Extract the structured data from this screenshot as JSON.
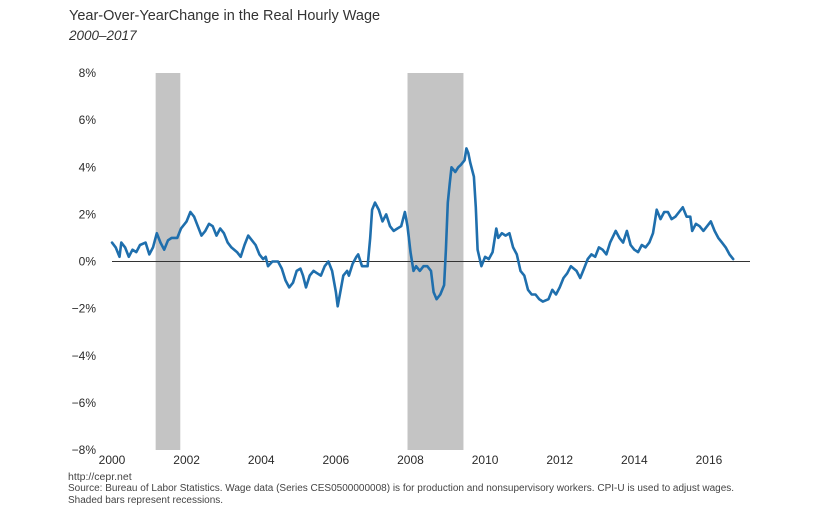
{
  "title": "Year-Over-YearChange in the Real Hourly Wage",
  "subtitle": "2000–2017",
  "footer": {
    "url": "http://cepr.net",
    "source": "Source: Bureau of Labor Statistics. Wage data (Series CES0500000008) is for production and nonsupervisory workers. CPI-U is used to adjust wages.",
    "note": "Shaded bars represent recessions."
  },
  "colors": {
    "line": "#1f6fad",
    "recession": "#c4c4c4",
    "zero_line": "#333333"
  },
  "chart_data": {
    "type": "line",
    "title": "Year-Over-YearChange in the Real Hourly Wage",
    "subtitle": "2000–2017",
    "xlim": [
      2000,
      2017.1
    ],
    "ylim": [
      -8,
      8
    ],
    "x_ticks": [
      2000,
      2002,
      2004,
      2006,
      2008,
      2010,
      2012,
      2014,
      2016
    ],
    "x_tick_labels": [
      "2000",
      "2002",
      "2004",
      "2006",
      "2008",
      "2010",
      "2012",
      "2014",
      "2016"
    ],
    "y_ticks": [
      8,
      6,
      4,
      2,
      0,
      -2,
      -4,
      -6,
      -8
    ],
    "y_tick_labels": [
      "8%",
      "6%",
      "4%",
      "2%",
      "0%",
      "−2%",
      "−4%",
      "−6%",
      "−8%"
    ],
    "grid": false,
    "recessions": [
      [
        2001.17,
        2001.83
      ],
      [
        2007.92,
        2009.42
      ]
    ],
    "series": [
      {
        "values": [
          [
            2000.0,
            0.8
          ],
          [
            2000.1,
            0.6
          ],
          [
            2000.2,
            0.2
          ],
          [
            2000.25,
            0.8
          ],
          [
            2000.35,
            0.6
          ],
          [
            2000.45,
            0.2
          ],
          [
            2000.55,
            0.5
          ],
          [
            2000.65,
            0.4
          ],
          [
            2000.75,
            0.7
          ],
          [
            2000.9,
            0.8
          ],
          [
            2001.0,
            0.3
          ],
          [
            2001.1,
            0.6
          ],
          [
            2001.2,
            1.2
          ],
          [
            2001.3,
            0.8
          ],
          [
            2001.4,
            0.5
          ],
          [
            2001.5,
            0.9
          ],
          [
            2001.6,
            1.0
          ],
          [
            2001.75,
            1.0
          ],
          [
            2001.85,
            1.4
          ],
          [
            2002.0,
            1.7
          ],
          [
            2002.1,
            2.1
          ],
          [
            2002.2,
            1.9
          ],
          [
            2002.3,
            1.5
          ],
          [
            2002.4,
            1.1
          ],
          [
            2002.5,
            1.3
          ],
          [
            2002.6,
            1.6
          ],
          [
            2002.7,
            1.5
          ],
          [
            2002.8,
            1.1
          ],
          [
            2002.9,
            1.4
          ],
          [
            2003.0,
            1.2
          ],
          [
            2003.1,
            0.8
          ],
          [
            2003.2,
            0.6
          ],
          [
            2003.35,
            0.4
          ],
          [
            2003.45,
            0.2
          ],
          [
            2003.55,
            0.7
          ],
          [
            2003.65,
            1.1
          ],
          [
            2003.75,
            0.9
          ],
          [
            2003.85,
            0.7
          ],
          [
            2003.95,
            0.3
          ],
          [
            2004.05,
            0.1
          ],
          [
            2004.12,
            0.2
          ],
          [
            2004.18,
            -0.2
          ],
          [
            2004.3,
            0.0
          ],
          [
            2004.45,
            0.0
          ],
          [
            2004.55,
            -0.3
          ],
          [
            2004.65,
            -0.8
          ],
          [
            2004.75,
            -1.1
          ],
          [
            2004.85,
            -0.9
          ],
          [
            2004.95,
            -0.4
          ],
          [
            2005.05,
            -0.3
          ],
          [
            2005.12,
            -0.6
          ],
          [
            2005.2,
            -1.1
          ],
          [
            2005.3,
            -0.6
          ],
          [
            2005.4,
            -0.4
          ],
          [
            2005.5,
            -0.5
          ],
          [
            2005.6,
            -0.6
          ],
          [
            2005.7,
            -0.2
          ],
          [
            2005.8,
            0.0
          ],
          [
            2005.9,
            -0.4
          ],
          [
            2006.0,
            -1.3
          ],
          [
            2006.05,
            -1.9
          ],
          [
            2006.12,
            -1.3
          ],
          [
            2006.2,
            -0.6
          ],
          [
            2006.3,
            -0.4
          ],
          [
            2006.35,
            -0.6
          ],
          [
            2006.45,
            -0.1
          ],
          [
            2006.55,
            0.2
          ],
          [
            2006.6,
            0.3
          ],
          [
            2006.7,
            -0.2
          ],
          [
            2006.85,
            -0.2
          ],
          [
            2006.92,
            1.0
          ],
          [
            2006.97,
            2.2
          ],
          [
            2007.05,
            2.5
          ],
          [
            2007.15,
            2.2
          ],
          [
            2007.25,
            1.7
          ],
          [
            2007.35,
            2.0
          ],
          [
            2007.45,
            1.5
          ],
          [
            2007.55,
            1.3
          ],
          [
            2007.65,
            1.4
          ],
          [
            2007.75,
            1.5
          ],
          [
            2007.85,
            2.1
          ],
          [
            2007.92,
            1.5
          ],
          [
            2008.0,
            0.4
          ],
          [
            2008.08,
            -0.4
          ],
          [
            2008.15,
            -0.2
          ],
          [
            2008.25,
            -0.4
          ],
          [
            2008.35,
            -0.2
          ],
          [
            2008.45,
            -0.2
          ],
          [
            2008.55,
            -0.4
          ],
          [
            2008.62,
            -1.3
          ],
          [
            2008.7,
            -1.6
          ],
          [
            2008.8,
            -1.4
          ],
          [
            2008.9,
            -1.0
          ],
          [
            2008.95,
            0.5
          ],
          [
            2009.0,
            2.5
          ],
          [
            2009.05,
            3.3
          ],
          [
            2009.1,
            4.0
          ],
          [
            2009.2,
            3.8
          ],
          [
            2009.28,
            4.0
          ],
          [
            2009.35,
            4.1
          ],
          [
            2009.45,
            4.3
          ],
          [
            2009.5,
            4.8
          ],
          [
            2009.55,
            4.6
          ],
          [
            2009.6,
            4.2
          ],
          [
            2009.7,
            3.6
          ],
          [
            2009.75,
            2.3
          ],
          [
            2009.8,
            0.5
          ],
          [
            2009.9,
            -0.2
          ],
          [
            2010.0,
            0.2
          ],
          [
            2010.1,
            0.1
          ],
          [
            2010.2,
            0.4
          ],
          [
            2010.3,
            1.4
          ],
          [
            2010.35,
            1.0
          ],
          [
            2010.45,
            1.2
          ],
          [
            2010.55,
            1.1
          ],
          [
            2010.65,
            1.2
          ],
          [
            2010.75,
            0.6
          ],
          [
            2010.85,
            0.3
          ],
          [
            2010.95,
            -0.4
          ],
          [
            2011.05,
            -0.6
          ],
          [
            2011.15,
            -1.2
          ],
          [
            2011.25,
            -1.4
          ],
          [
            2011.35,
            -1.4
          ],
          [
            2011.45,
            -1.6
          ],
          [
            2011.55,
            -1.7
          ],
          [
            2011.7,
            -1.6
          ],
          [
            2011.8,
            -1.2
          ],
          [
            2011.9,
            -1.4
          ],
          [
            2012.0,
            -1.1
          ],
          [
            2012.1,
            -0.7
          ],
          [
            2012.2,
            -0.5
          ],
          [
            2012.3,
            -0.2
          ],
          [
            2012.45,
            -0.4
          ],
          [
            2012.55,
            -0.7
          ],
          [
            2012.65,
            -0.3
          ],
          [
            2012.75,
            0.1
          ],
          [
            2012.85,
            0.3
          ],
          [
            2012.95,
            0.2
          ],
          [
            2013.05,
            0.6
          ],
          [
            2013.15,
            0.5
          ],
          [
            2013.25,
            0.3
          ],
          [
            2013.35,
            0.8
          ],
          [
            2013.5,
            1.3
          ],
          [
            2013.6,
            1.0
          ],
          [
            2013.7,
            0.8
          ],
          [
            2013.8,
            1.3
          ],
          [
            2013.9,
            0.7
          ],
          [
            2014.0,
            0.5
          ],
          [
            2014.1,
            0.4
          ],
          [
            2014.2,
            0.7
          ],
          [
            2014.3,
            0.6
          ],
          [
            2014.4,
            0.8
          ],
          [
            2014.5,
            1.2
          ],
          [
            2014.55,
            1.7
          ],
          [
            2014.6,
            2.2
          ],
          [
            2014.7,
            1.8
          ],
          [
            2014.8,
            2.1
          ],
          [
            2014.9,
            2.1
          ],
          [
            2015.0,
            1.8
          ],
          [
            2015.1,
            1.9
          ],
          [
            2015.2,
            2.1
          ],
          [
            2015.3,
            2.3
          ],
          [
            2015.4,
            1.9
          ],
          [
            2015.5,
            1.9
          ],
          [
            2015.55,
            1.3
          ],
          [
            2015.65,
            1.6
          ],
          [
            2015.75,
            1.5
          ],
          [
            2015.85,
            1.3
          ],
          [
            2015.95,
            1.5
          ],
          [
            2016.05,
            1.7
          ],
          [
            2016.15,
            1.3
          ],
          [
            2016.25,
            1.0
          ],
          [
            2016.35,
            0.8
          ],
          [
            2016.45,
            0.6
          ],
          [
            2016.55,
            0.3
          ],
          [
            2016.65,
            0.1
          ]
        ]
      }
    ]
  }
}
